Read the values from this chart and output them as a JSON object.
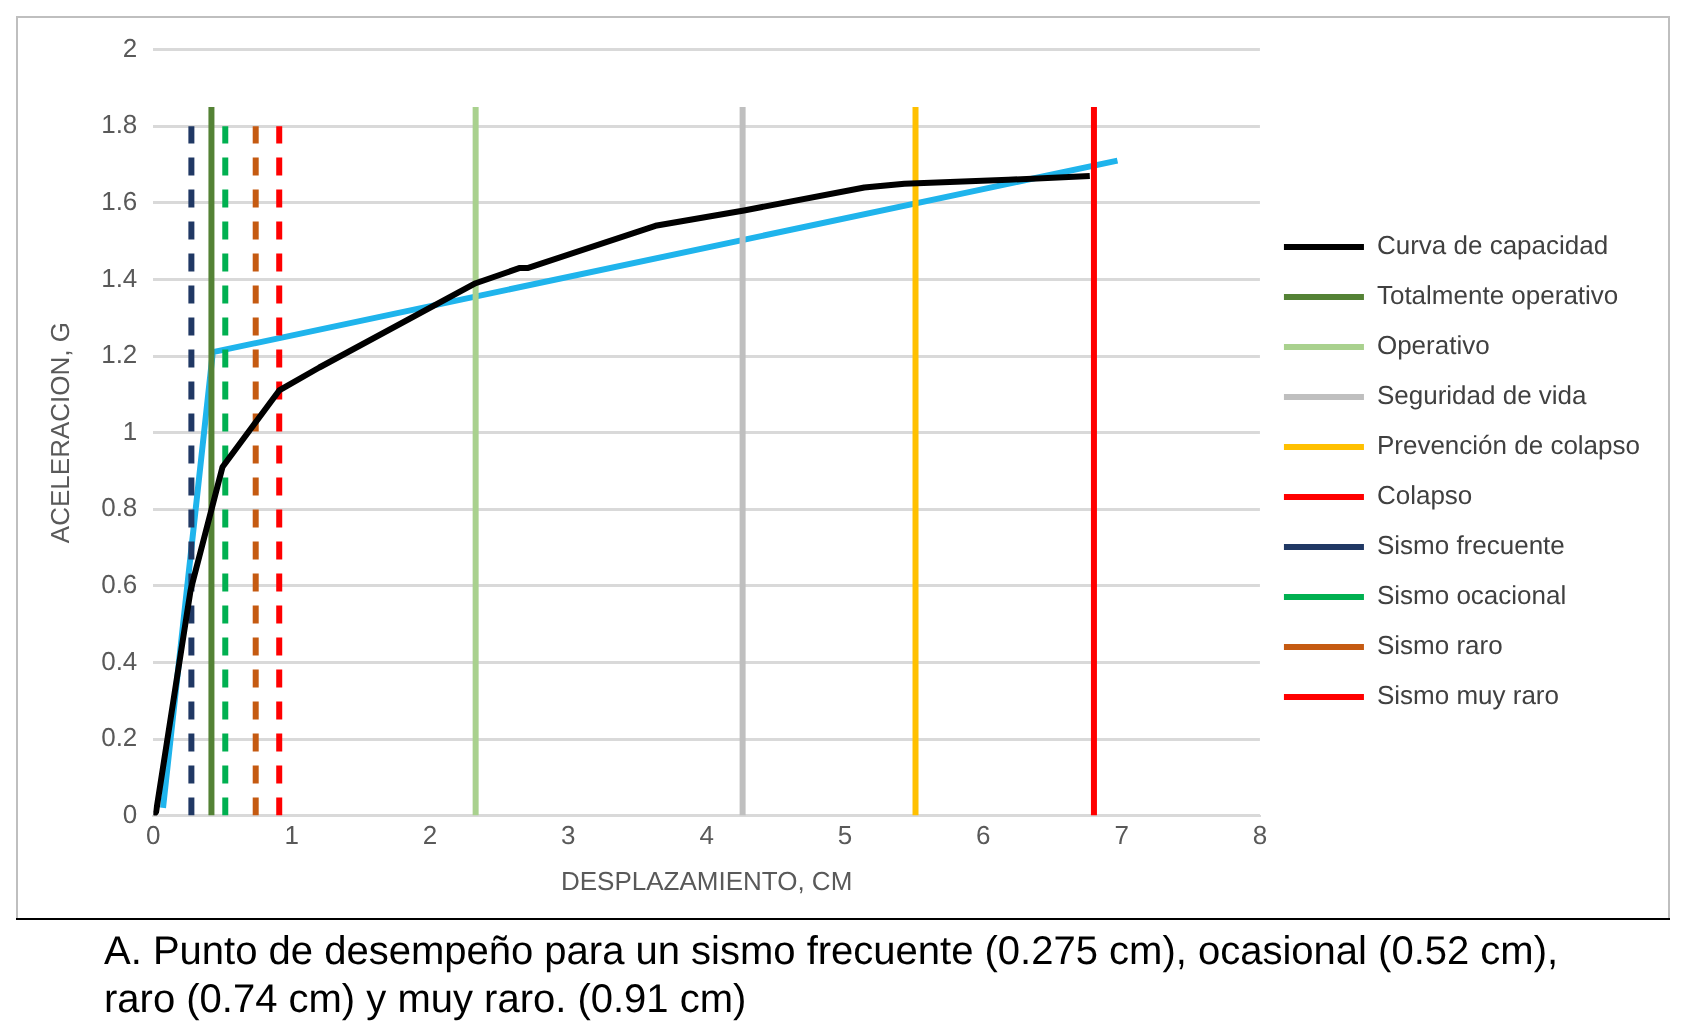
{
  "chart_data": {
    "type": "line",
    "xlabel": "DESPLAZAMIENTO, CM",
    "ylabel": "ACELERACION, G",
    "xlim": [
      0,
      8
    ],
    "xticks": [
      0,
      1,
      2,
      3,
      4,
      5,
      6,
      7,
      8
    ],
    "ylim": [
      0,
      2
    ],
    "yticks": [
      0,
      {
        "value": 0.2,
        "label": "0.2"
      },
      {
        "value": 0.4,
        "label": "0.4"
      },
      {
        "value": 0.6,
        "label": "0.6"
      },
      {
        "value": 0.8,
        "label": "0.8"
      },
      1,
      {
        "value": 1.2,
        "label": "1.2"
      },
      {
        "value": 1.4,
        "label": "1.4"
      },
      {
        "value": 1.6,
        "label": "1.6"
      },
      {
        "value": 1.8,
        "label": "1.8"
      },
      2
    ],
    "grid": "y",
    "legend": "right",
    "marker": "none",
    "annotations": [
      "A.  Punto de desempeño para un sismo frecuente (0.275 cm), ocasional (0.52 cm), raro (0.74 cm) y muy raro. (0.91 cm)"
    ],
    "series": [
      {
        "name": "Curva de capacidad",
        "color": "#000000",
        "line_style": "solid",
        "x": [
          0,
          0.02,
          0.27,
          0.5,
          0.91,
          1.2,
          2.33,
          2.65,
          2.71,
          3.63,
          4.27,
          5.14,
          5.43,
          6.18,
          6.77
        ],
        "values": [
          0,
          0.01,
          0.59,
          0.91,
          1.11,
          1.17,
          1.39,
          1.43,
          1.43,
          1.54,
          1.58,
          1.64,
          1.65,
          1.66,
          1.67
        ]
      },
      {
        "name": "Totalmente operativo",
        "color": "#548235",
        "line_style": "solid",
        "x": [
          0.42,
          0.42
        ],
        "values": [
          0,
          1.85
        ]
      },
      {
        "name": "Operativo",
        "color": "#a9d18e",
        "line_style": "solid",
        "x": [
          2.33,
          2.33
        ],
        "values": [
          0,
          1.85
        ]
      },
      {
        "name": "Seguridad de vida",
        "color": "#bfbfbf",
        "line_style": "solid",
        "x": [
          4.26,
          4.26
        ],
        "values": [
          0,
          1.85
        ]
      },
      {
        "name": "Prevención de colapso",
        "color": "#ffc000",
        "line_style": "solid",
        "x": [
          5.51,
          5.51
        ],
        "values": [
          0,
          1.85
        ]
      },
      {
        "name": "Colapso",
        "color": "#ff0000",
        "line_style": "solid",
        "x": [
          6.8,
          6.8
        ],
        "values": [
          0,
          1.85
        ]
      },
      {
        "name": "Sismo frecuente",
        "color": "#203864",
        "line_style": "dashed",
        "x": [
          0.275,
          0.275
        ],
        "values": [
          0,
          1.8
        ]
      },
      {
        "name": "Sismo ocacional",
        "color": "#00b050",
        "line_style": "dashed",
        "x": [
          0.52,
          0.52
        ],
        "values": [
          0,
          1.8
        ]
      },
      {
        "name": "Sismo raro",
        "color": "#c55a11",
        "line_style": "dashed",
        "x": [
          0.74,
          0.74
        ],
        "values": [
          0,
          1.8
        ]
      },
      {
        "name": "Sismo muy raro",
        "color": "#ff0000",
        "line_style": "dashed",
        "x": [
          0.91,
          0.91
        ],
        "values": [
          0,
          1.8
        ]
      },
      {
        "color": "#1fb4ec",
        "line_style": "solid",
        "x": [
          0.07,
          0.43,
          6.97
        ],
        "values": [
          0.02,
          1.21,
          1.71
        ]
      }
    ]
  }
}
